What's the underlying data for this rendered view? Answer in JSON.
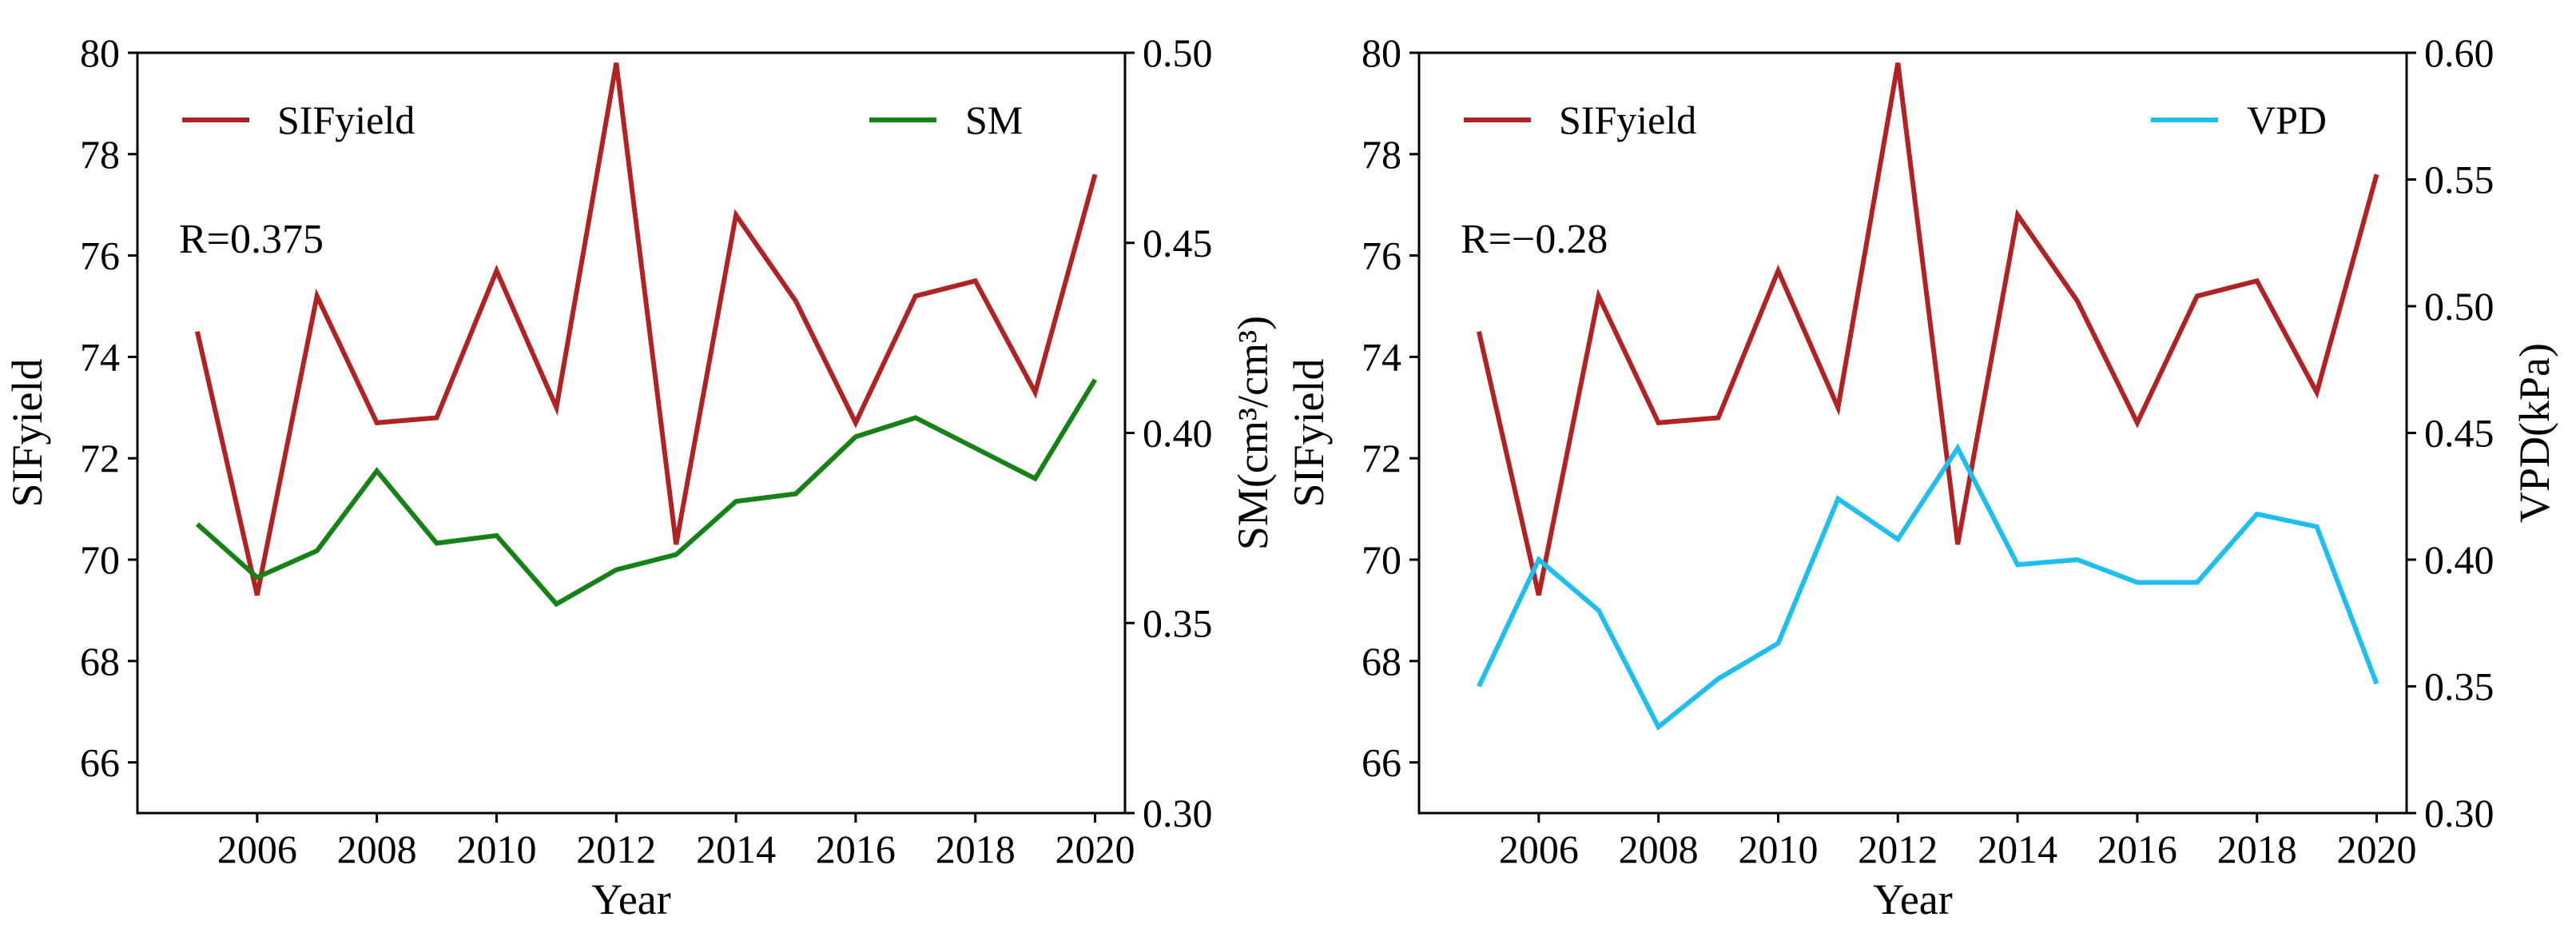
{
  "chart_data": [
    {
      "type": "line",
      "x": [
        2005,
        2006,
        2007,
        2008,
        2009,
        2010,
        2011,
        2012,
        2013,
        2014,
        2015,
        2016,
        2017,
        2018,
        2019,
        2020
      ],
      "xlabel": "Year",
      "xticks": [
        "2006",
        "2008",
        "2010",
        "2012",
        "2014",
        "2016",
        "2018",
        "2020"
      ],
      "xlim": [
        2004,
        2020.5
      ],
      "left_axis": {
        "label": "SIFyield",
        "ylim": [
          65,
          80
        ],
        "ticks": [
          "66",
          "68",
          "70",
          "72",
          "74",
          "76",
          "78",
          "80"
        ]
      },
      "right_axis": {
        "label": "SM(cm³/cm³)",
        "ylim": [
          0.3,
          0.5
        ],
        "ticks": [
          "0.30",
          "0.35",
          "0.40",
          "0.45",
          "0.50"
        ]
      },
      "series": [
        {
          "name": "SIFyield",
          "axis": "left",
          "color": "#b22222",
          "values": [
            74.5,
            69.3,
            75.2,
            72.7,
            72.8,
            75.7,
            73.0,
            79.8,
            70.3,
            76.8,
            75.1,
            72.7,
            75.2,
            75.5,
            73.3,
            77.6
          ]
        },
        {
          "name": "SM",
          "axis": "right",
          "color": "#148214",
          "values": [
            0.376,
            0.362,
            0.369,
            0.39,
            0.371,
            0.373,
            0.355,
            0.364,
            0.368,
            0.382,
            0.384,
            0.399,
            0.404,
            0.396,
            0.388,
            0.414
          ]
        }
      ],
      "legend": [
        "SIFyield",
        "SM"
      ],
      "annotation": "R=0.375"
    },
    {
      "type": "line",
      "x": [
        2005,
        2006,
        2007,
        2008,
        2009,
        2010,
        2011,
        2012,
        2013,
        2014,
        2015,
        2016,
        2017,
        2018,
        2019,
        2020
      ],
      "xlabel": "Year",
      "xticks": [
        "2006",
        "2008",
        "2010",
        "2012",
        "2014",
        "2016",
        "2018",
        "2020"
      ],
      "xlim": [
        2004,
        2020.5
      ],
      "left_axis": {
        "label": "SIFyield",
        "ylim": [
          65,
          80
        ],
        "ticks": [
          "66",
          "68",
          "70",
          "72",
          "74",
          "76",
          "78",
          "80"
        ]
      },
      "right_axis": {
        "label": "VPD(kPa)",
        "ylim": [
          0.3,
          0.6
        ],
        "ticks": [
          "0.30",
          "0.35",
          "0.40",
          "0.45",
          "0.50",
          "0.55",
          "0.60"
        ]
      },
      "series": [
        {
          "name": "SIFyield",
          "axis": "left",
          "color": "#b22222",
          "values": [
            74.5,
            69.3,
            75.2,
            72.7,
            72.8,
            75.7,
            73.0,
            79.8,
            70.3,
            76.8,
            75.1,
            72.7,
            75.2,
            75.5,
            73.3,
            77.6
          ]
        },
        {
          "name": "VPD",
          "axis": "right",
          "color": "#1ebef0",
          "values": [
            0.35,
            0.4,
            0.38,
            0.334,
            0.353,
            0.367,
            0.424,
            0.408,
            0.444,
            0.398,
            0.4,
            0.391,
            0.391,
            0.418,
            0.413,
            0.351
          ]
        }
      ],
      "legend": [
        "SIFyield",
        "VPD"
      ],
      "annotation": "R=−0.28"
    }
  ]
}
